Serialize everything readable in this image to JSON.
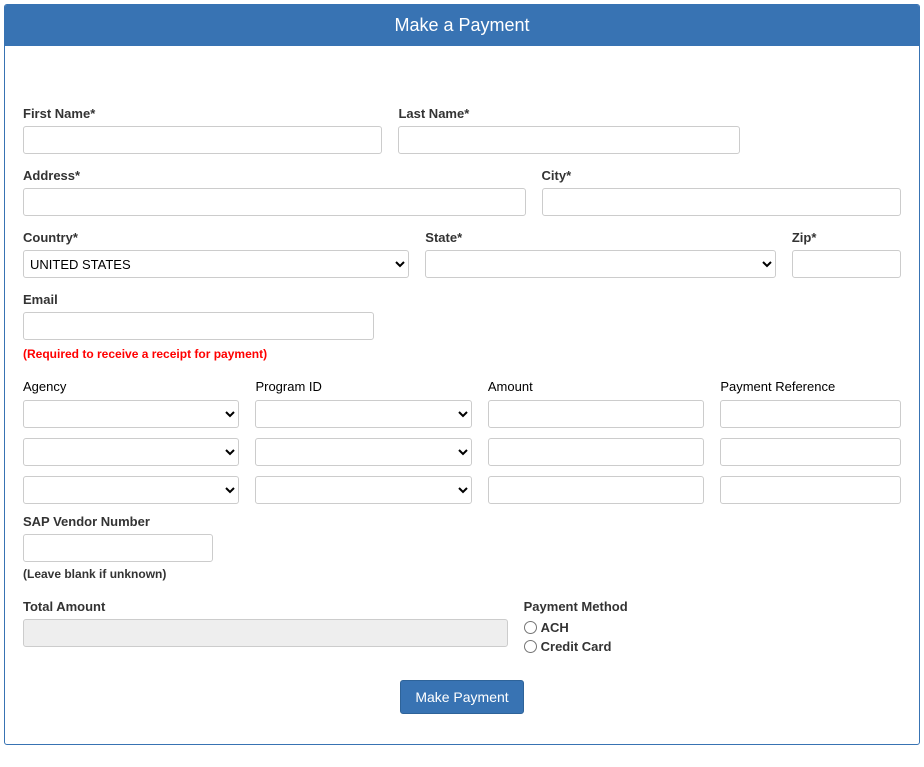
{
  "header": {
    "title": "Make a Payment"
  },
  "labels": {
    "first_name": "First Name*",
    "last_name": "Last Name*",
    "address": "Address*",
    "city": "City*",
    "country": "Country*",
    "state": "State*",
    "zip": "Zip*",
    "email": "Email",
    "email_help": "(Required to receive a receipt for payment)",
    "agency": "Agency",
    "program_id": "Program ID",
    "amount": "Amount",
    "payment_reference": "Payment Reference",
    "sap_vendor": "SAP Vendor Number",
    "sap_vendor_help": "(Leave blank if unknown)",
    "total_amount": "Total Amount",
    "payment_method": "Payment Method",
    "ach": "ACH",
    "credit_card": "Credit Card",
    "submit": "Make Payment"
  },
  "values": {
    "first_name": "",
    "last_name": "",
    "address": "",
    "city": "",
    "country_selected": "UNITED STATES",
    "state_selected": "",
    "zip": "",
    "email": "",
    "sap_vendor": "",
    "total_amount": ""
  },
  "country_options": [
    "UNITED STATES"
  ],
  "state_options": [
    ""
  ],
  "agency_options": [
    ""
  ],
  "program_options": [
    ""
  ],
  "payment_rows": [
    {
      "agency": "",
      "program_id": "",
      "amount": "",
      "reference": ""
    },
    {
      "agency": "",
      "program_id": "",
      "amount": "",
      "reference": ""
    },
    {
      "agency": "",
      "program_id": "",
      "amount": "",
      "reference": ""
    }
  ],
  "colors": {
    "brand": "#3873b3",
    "error": "#ff0000",
    "border": "#cccccc",
    "readonly_bg": "#eeeeee"
  }
}
